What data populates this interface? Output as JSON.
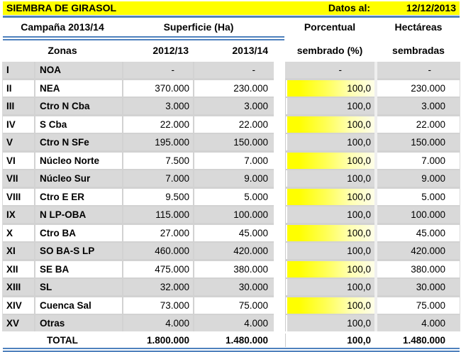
{
  "title_bar": {
    "title": "SIEMBRA DE GIRASOL",
    "datos_label": "Datos al:",
    "date": "12/12/2013"
  },
  "header": {
    "campania": "Campaña 2013/14",
    "superficie": "Superficie (Ha)",
    "porcentual_line1": "Porcentual",
    "porcentual_line2": "sembrado (%)",
    "hectareas_line1": "Hectáreas",
    "hectareas_line2": "sembradas",
    "zonas": "Zonas",
    "col_2012": "2012/13",
    "col_2013": "2013/14"
  },
  "rows": [
    {
      "num": "I",
      "zona": "NOA",
      "s2012": "-",
      "s2013": "-",
      "pct": "-",
      "ha": "-",
      "bar": false
    },
    {
      "num": "II",
      "zona": "NEA",
      "s2012": "370.000",
      "s2013": "230.000",
      "pct": "100,0",
      "ha": "230.000",
      "bar": true
    },
    {
      "num": "III",
      "zona": "Ctro N Cba",
      "s2012": "3.000",
      "s2013": "3.000",
      "pct": "100,0",
      "ha": "3.000",
      "bar": true
    },
    {
      "num": "IV",
      "zona": "S Cba",
      "s2012": "22.000",
      "s2013": "22.000",
      "pct": "100,0",
      "ha": "22.000",
      "bar": true
    },
    {
      "num": "V",
      "zona": "Ctro N SFe",
      "s2012": "195.000",
      "s2013": "150.000",
      "pct": "100,0",
      "ha": "150.000",
      "bar": true
    },
    {
      "num": "VI",
      "zona": "Núcleo Norte",
      "s2012": "7.500",
      "s2013": "7.000",
      "pct": "100,0",
      "ha": "7.000",
      "bar": true
    },
    {
      "num": "VII",
      "zona": "Núcleo Sur",
      "s2012": "7.000",
      "s2013": "9.000",
      "pct": "100,0",
      "ha": "9.000",
      "bar": true
    },
    {
      "num": "VIII",
      "zona": "Ctro E ER",
      "s2012": "9.500",
      "s2013": "5.000",
      "pct": "100,0",
      "ha": "5.000",
      "bar": true
    },
    {
      "num": "IX",
      "zona": "N LP-OBA",
      "s2012": "115.000",
      "s2013": "100.000",
      "pct": "100,0",
      "ha": "100.000",
      "bar": true
    },
    {
      "num": "X",
      "zona": "Ctro BA",
      "s2012": "27.000",
      "s2013": "45.000",
      "pct": "100,0",
      "ha": "45.000",
      "bar": true
    },
    {
      "num": "XI",
      "zona": "SO BA-S LP",
      "s2012": "460.000",
      "s2013": "420.000",
      "pct": "100,0",
      "ha": "420.000",
      "bar": true
    },
    {
      "num": "XII",
      "zona": "SE BA",
      "s2012": "475.000",
      "s2013": "380.000",
      "pct": "100,0",
      "ha": "380.000",
      "bar": true
    },
    {
      "num": "XIII",
      "zona": "SL",
      "s2012": "32.000",
      "s2013": "30.000",
      "pct": "100,0",
      "ha": "30.000",
      "bar": true
    },
    {
      "num": "XIV",
      "zona": "Cuenca Sal",
      "s2012": "73.000",
      "s2013": "75.000",
      "pct": "100,0",
      "ha": "75.000",
      "bar": true
    },
    {
      "num": "XV",
      "zona": "Otras",
      "s2012": "4.000",
      "s2013": "4.000",
      "pct": "100,0",
      "ha": "4.000",
      "bar": true
    }
  ],
  "total": {
    "label": "TOTAL",
    "s2012": "1.800.000",
    "s2013": "1.480.000",
    "pct": "100,0",
    "ha": "1.480.000"
  },
  "colors": {
    "accent_yellow": "#FFFF00",
    "row_gray": "#D9D9D9",
    "line_blue": "#4F81BD",
    "grid_gray": "#D2D2D2"
  }
}
